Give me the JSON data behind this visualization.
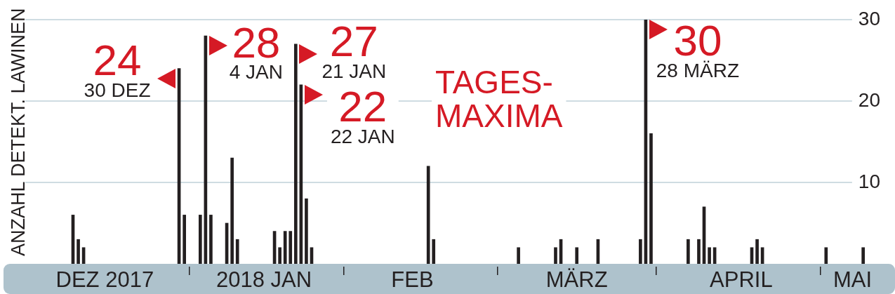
{
  "chart_data": {
    "type": "bar",
    "ylabel": "ANZAHL DETEKT. LAWINEN",
    "color": "#231f20",
    "x": [
      "2017-12-10",
      "2017-12-11",
      "2017-12-12",
      "2017-12-30",
      "2017-12-31",
      "2018-01-03",
      "2018-01-04",
      "2018-01-05",
      "2018-01-08",
      "2018-01-09",
      "2018-01-10",
      "2018-01-17",
      "2018-01-18",
      "2018-01-19",
      "2018-01-20",
      "2018-01-21",
      "2018-01-22",
      "2018-01-23",
      "2018-01-24",
      "2018-02-15",
      "2018-02-16",
      "2018-03-04",
      "2018-03-11",
      "2018-03-12",
      "2018-03-15",
      "2018-03-19",
      "2018-03-27",
      "2018-03-28",
      "2018-03-29",
      "2018-04-05",
      "2018-04-07",
      "2018-04-08",
      "2018-04-09",
      "2018-04-10",
      "2018-04-17",
      "2018-04-18",
      "2018-04-19",
      "2018-05-01",
      "2018-05-08"
    ],
    "values": [
      6,
      3,
      2,
      24,
      6,
      6,
      28,
      6,
      5,
      13,
      3,
      4,
      2,
      4,
      4,
      27,
      22,
      8,
      2,
      12,
      3,
      2,
      2,
      3,
      2,
      3,
      3,
      30,
      16,
      3,
      3,
      7,
      2,
      2,
      2,
      3,
      2,
      2,
      2
    ],
    "xlim": [
      "2017-12-01",
      "2018-05-14"
    ],
    "xticks": [
      {
        "value": "2017-12-16",
        "label": "DEZ 2017"
      },
      {
        "value": "2018-01-01",
        "label": null
      },
      {
        "value": "2018-01-15",
        "label": "2018 JAN"
      },
      {
        "value": "2018-01-30",
        "label": null
      },
      {
        "value": "2018-02-12",
        "label": "FEB"
      },
      {
        "value": "2018-02-28",
        "label": null
      },
      {
        "value": "2018-03-15",
        "label": "MÄRZ"
      },
      {
        "value": "2018-03-30",
        "label": null
      },
      {
        "value": "2018-04-15",
        "label": "APRIL"
      },
      {
        "value": "2018-04-30",
        "label": null
      },
      {
        "value": "2018-05-06",
        "label": "MAI"
      }
    ],
    "ylim": [
      0,
      30
    ],
    "yticks": [
      10,
      20,
      30
    ],
    "grid": "y",
    "annotations": [
      {
        "text": "24\n30 DEZ",
        "x": "2017-12-30",
        "y": 24
      },
      {
        "text": "28\n4 JAN",
        "x": "2018-01-04",
        "y": 28
      },
      {
        "text": "27\n21 JAN",
        "x": "2018-01-21",
        "y": 27
      },
      {
        "text": "22\n22 JAN",
        "x": "2018-01-22",
        "y": 22
      },
      {
        "text": "30\n28 MÄRZ",
        "x": "2018-03-28",
        "y": 30
      },
      "TAGES-\nMAXIMA"
    ]
  }
}
